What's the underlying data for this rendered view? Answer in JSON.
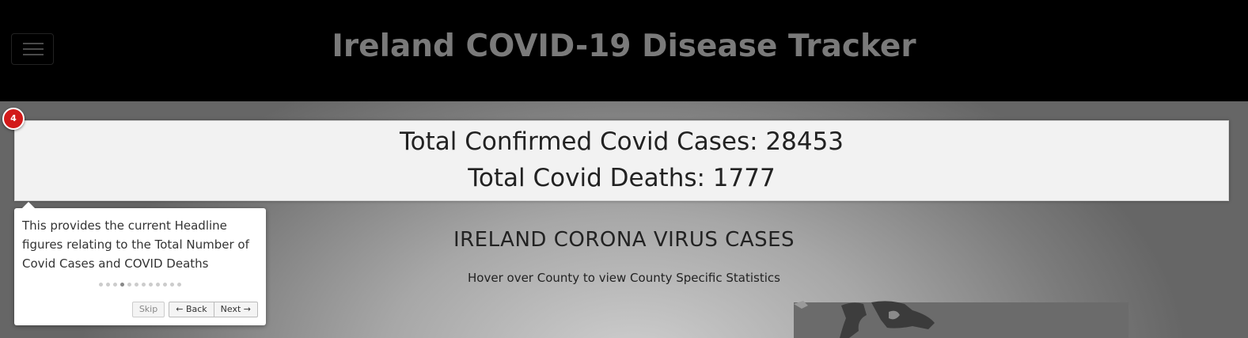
{
  "header": {
    "title": "Ireland COVID-19 Disease Tracker",
    "menu_icon": "hamburger-menu-icon"
  },
  "headline": {
    "cases_label": "Total Confirmed Covid Cases: 28453",
    "deaths_label": "Total Covid Deaths: 1777"
  },
  "tour": {
    "step_number": "4",
    "text": "This provides the current Headline figures relating to the Total Number of Covid Cases and COVID Deaths",
    "total_steps": 12,
    "current_step_index": 3,
    "skip_label": "Skip",
    "back_label": "← Back",
    "next_label": "Next →"
  },
  "main": {
    "section_title": "IRELAND CORONA VIRUS CASES",
    "section_subtitle": "Hover over County to view County Specific Statistics"
  },
  "colors": {
    "navbar_bg": "#000000",
    "title_text": "#7a7a7a",
    "badge": "#d21a1a",
    "card_bg": "#f2f2f2"
  }
}
